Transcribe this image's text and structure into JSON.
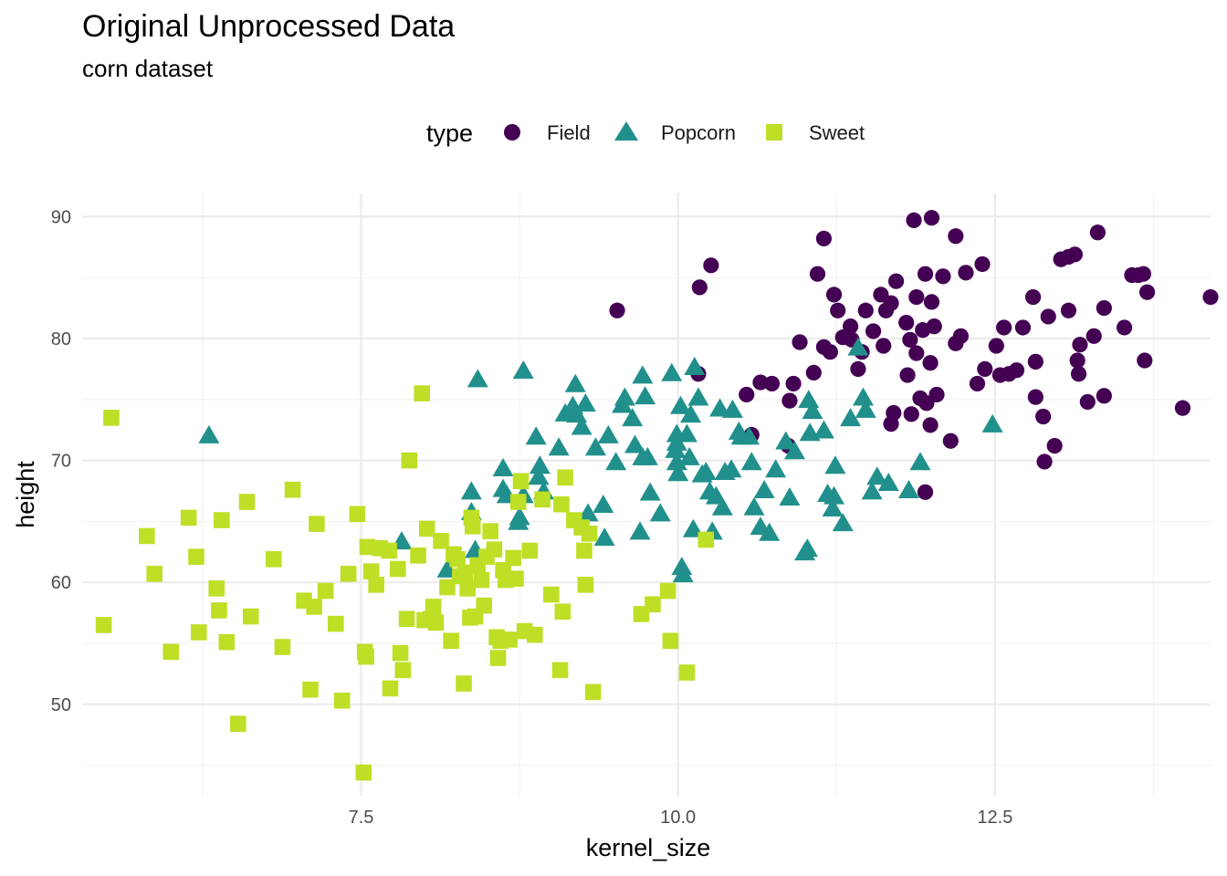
{
  "chart_data": {
    "type": "scatter",
    "title": "Original Unprocessed Data",
    "subtitle": "corn dataset",
    "xlabel": "kernel_size",
    "ylabel": "height",
    "xlim": [
      5.3,
      14.2
    ],
    "ylim": [
      42.5,
      91.9
    ],
    "x_ticks": [
      7.5,
      10.0,
      12.5
    ],
    "x_tick_labels": [
      "7.5",
      "10.0",
      "12.5"
    ],
    "y_ticks": [
      50,
      60,
      70,
      80,
      90
    ],
    "y_tick_labels": [
      "50",
      "60",
      "70",
      "80",
      "90"
    ],
    "grid": true,
    "legend": {
      "title": "type",
      "placement": "top"
    },
    "series": [
      {
        "name": "Field",
        "color": "#440154",
        "shape": "circle",
        "points": [
          [
            9.52,
            82.3
          ],
          [
            10.17,
            84.2
          ],
          [
            10.26,
            86.0
          ],
          [
            10.16,
            77.1
          ],
          [
            10.54,
            75.4
          ],
          [
            10.58,
            72.1
          ],
          [
            10.65,
            76.4
          ],
          [
            10.74,
            76.3
          ],
          [
            10.87,
            71.2
          ],
          [
            10.88,
            74.9
          ],
          [
            10.91,
            76.3
          ],
          [
            10.96,
            79.7
          ],
          [
            11.07,
            77.2
          ],
          [
            11.1,
            85.3
          ],
          [
            11.15,
            88.2
          ],
          [
            11.15,
            79.3
          ],
          [
            11.2,
            78.9
          ],
          [
            11.23,
            83.6
          ],
          [
            11.26,
            82.3
          ],
          [
            11.3,
            80.1
          ],
          [
            11.36,
            81.0
          ],
          [
            11.37,
            79.9
          ],
          [
            11.42,
            77.5
          ],
          [
            11.45,
            78.9
          ],
          [
            11.48,
            82.3
          ],
          [
            11.54,
            80.6
          ],
          [
            11.6,
            83.6
          ],
          [
            11.62,
            79.4
          ],
          [
            11.64,
            82.3
          ],
          [
            11.68,
            82.9
          ],
          [
            11.68,
            73.0
          ],
          [
            11.7,
            73.9
          ],
          [
            11.72,
            84.7
          ],
          [
            11.8,
            81.3
          ],
          [
            11.81,
            77.0
          ],
          [
            11.83,
            79.9
          ],
          [
            11.84,
            73.8
          ],
          [
            11.86,
            89.7
          ],
          [
            11.88,
            83.4
          ],
          [
            11.88,
            78.8
          ],
          [
            11.91,
            75.1
          ],
          [
            11.93,
            80.7
          ],
          [
            11.95,
            85.3
          ],
          [
            11.96,
            74.7
          ],
          [
            11.95,
            67.4
          ],
          [
            11.99,
            78.0
          ],
          [
            11.99,
            72.9
          ],
          [
            12.0,
            89.9
          ],
          [
            12.0,
            83.0
          ],
          [
            12.02,
            81.0
          ],
          [
            12.04,
            75.4
          ],
          [
            12.09,
            85.1
          ],
          [
            12.15,
            71.6
          ],
          [
            12.19,
            88.4
          ],
          [
            12.19,
            79.6
          ],
          [
            12.23,
            80.2
          ],
          [
            12.27,
            85.4
          ],
          [
            12.36,
            76.3
          ],
          [
            12.4,
            86.1
          ],
          [
            12.42,
            77.5
          ],
          [
            12.51,
            79.4
          ],
          [
            12.54,
            77.0
          ],
          [
            12.57,
            80.9
          ],
          [
            12.61,
            77.1
          ],
          [
            12.67,
            77.4
          ],
          [
            12.72,
            80.9
          ],
          [
            12.8,
            83.4
          ],
          [
            12.82,
            75.2
          ],
          [
            12.82,
            78.1
          ],
          [
            12.88,
            73.6
          ],
          [
            12.89,
            69.9
          ],
          [
            12.92,
            81.8
          ],
          [
            12.97,
            71.2
          ],
          [
            13.02,
            86.5
          ],
          [
            13.08,
            82.3
          ],
          [
            13.08,
            86.7
          ],
          [
            13.13,
            86.9
          ],
          [
            13.15,
            78.2
          ],
          [
            13.16,
            77.1
          ],
          [
            13.17,
            79.5
          ],
          [
            13.23,
            74.8
          ],
          [
            13.28,
            80.2
          ],
          [
            13.31,
            88.7
          ],
          [
            13.36,
            75.3
          ],
          [
            13.36,
            82.5
          ],
          [
            13.52,
            80.9
          ],
          [
            13.58,
            85.2
          ],
          [
            13.63,
            85.2
          ],
          [
            13.67,
            85.3
          ],
          [
            13.68,
            78.2
          ],
          [
            13.7,
            83.8
          ],
          [
            13.98,
            74.3
          ],
          [
            14.2,
            83.4
          ]
        ]
      },
      {
        "name": "Popcorn",
        "color": "#21908C",
        "shape": "triangle",
        "points": [
          [
            6.3,
            72.0
          ],
          [
            7.82,
            63.3
          ],
          [
            8.18,
            61.0
          ],
          [
            8.37,
            67.4
          ],
          [
            8.37,
            65.7
          ],
          [
            8.4,
            62.6
          ],
          [
            8.42,
            76.6
          ],
          [
            8.62,
            69.3
          ],
          [
            8.62,
            67.6
          ],
          [
            8.65,
            67.1
          ],
          [
            8.74,
            64.9
          ],
          [
            8.75,
            65.3
          ],
          [
            8.78,
            67.1
          ],
          [
            8.78,
            77.3
          ],
          [
            8.88,
            71.9
          ],
          [
            8.9,
            68.6
          ],
          [
            8.91,
            69.5
          ],
          [
            8.94,
            67.4
          ],
          [
            9.06,
            71.0
          ],
          [
            9.11,
            73.8
          ],
          [
            9.17,
            74.4
          ],
          [
            9.19,
            76.2
          ],
          [
            9.2,
            73.7
          ],
          [
            9.24,
            72.7
          ],
          [
            9.27,
            74.6
          ],
          [
            9.29,
            65.6
          ],
          [
            9.35,
            71.0
          ],
          [
            9.41,
            66.3
          ],
          [
            9.42,
            63.6
          ],
          [
            9.45,
            72.0
          ],
          [
            9.51,
            69.8
          ],
          [
            9.56,
            74.5
          ],
          [
            9.58,
            75.1
          ],
          [
            9.64,
            73.4
          ],
          [
            9.66,
            71.2
          ],
          [
            9.7,
            64.1
          ],
          [
            9.72,
            70.2
          ],
          [
            9.72,
            76.9
          ],
          [
            9.74,
            75.2
          ],
          [
            9.76,
            70.2
          ],
          [
            9.78,
            67.3
          ],
          [
            9.86,
            65.6
          ],
          [
            9.95,
            77.1
          ],
          [
            9.98,
            70.8
          ],
          [
            9.99,
            72.1
          ],
          [
            9.99,
            71.4
          ],
          [
            9.99,
            69.8
          ],
          [
            10.0,
            68.9
          ],
          [
            10.02,
            74.4
          ],
          [
            10.03,
            61.2
          ],
          [
            10.04,
            60.6
          ],
          [
            10.07,
            72.1
          ],
          [
            10.09,
            70.2
          ],
          [
            10.1,
            73.7
          ],
          [
            10.12,
            64.3
          ],
          [
            10.13,
            77.6
          ],
          [
            10.16,
            75.1
          ],
          [
            10.19,
            68.8
          ],
          [
            10.22,
            69.0
          ],
          [
            10.25,
            67.4
          ],
          [
            10.27,
            64.1
          ],
          [
            10.3,
            67.0
          ],
          [
            10.33,
            74.2
          ],
          [
            10.35,
            66.1
          ],
          [
            10.37,
            69.0
          ],
          [
            10.42,
            69.2
          ],
          [
            10.43,
            74.1
          ],
          [
            10.48,
            72.3
          ],
          [
            10.5,
            71.9
          ],
          [
            10.56,
            71.9
          ],
          [
            10.58,
            69.8
          ],
          [
            10.6,
            66.1
          ],
          [
            10.65,
            64.5
          ],
          [
            10.68,
            67.5
          ],
          [
            10.72,
            64.0
          ],
          [
            10.77,
            69.2
          ],
          [
            10.85,
            71.5
          ],
          [
            10.88,
            66.9
          ],
          [
            10.92,
            70.7
          ],
          [
            11.0,
            62.4
          ],
          [
            11.02,
            62.7
          ],
          [
            11.03,
            74.9
          ],
          [
            11.04,
            72.2
          ],
          [
            11.06,
            74.0
          ],
          [
            11.15,
            72.4
          ],
          [
            11.18,
            67.2
          ],
          [
            11.22,
            66.0
          ],
          [
            11.23,
            67.0
          ],
          [
            11.24,
            69.5
          ],
          [
            11.3,
            64.8
          ],
          [
            11.36,
            73.4
          ],
          [
            11.42,
            79.2
          ],
          [
            11.46,
            75.1
          ],
          [
            11.48,
            74.1
          ],
          [
            11.53,
            67.4
          ],
          [
            11.57,
            68.6
          ],
          [
            11.66,
            68.1
          ],
          [
            11.82,
            67.5
          ],
          [
            11.91,
            69.8
          ],
          [
            12.48,
            72.9
          ]
        ]
      },
      {
        "name": "Sweet",
        "color": "#BDDF26",
        "shape": "square",
        "points": [
          [
            5.47,
            56.5
          ],
          [
            5.53,
            73.5
          ],
          [
            5.81,
            63.8
          ],
          [
            5.87,
            60.7
          ],
          [
            6.0,
            54.3
          ],
          [
            6.14,
            65.3
          ],
          [
            6.2,
            62.1
          ],
          [
            6.22,
            55.9
          ],
          [
            6.36,
            59.5
          ],
          [
            6.38,
            57.7
          ],
          [
            6.4,
            65.1
          ],
          [
            6.44,
            55.1
          ],
          [
            6.53,
            48.4
          ],
          [
            6.6,
            66.6
          ],
          [
            6.63,
            57.2
          ],
          [
            6.81,
            61.9
          ],
          [
            6.88,
            54.7
          ],
          [
            6.96,
            67.6
          ],
          [
            7.05,
            58.5
          ],
          [
            7.1,
            51.2
          ],
          [
            7.13,
            58.0
          ],
          [
            7.15,
            64.8
          ],
          [
            7.22,
            59.3
          ],
          [
            7.3,
            56.6
          ],
          [
            7.35,
            50.3
          ],
          [
            7.4,
            60.7
          ],
          [
            7.47,
            65.6
          ],
          [
            7.52,
            44.4
          ],
          [
            7.53,
            54.3
          ],
          [
            7.54,
            53.9
          ],
          [
            7.55,
            62.9
          ],
          [
            7.58,
            60.9
          ],
          [
            7.62,
            59.8
          ],
          [
            7.65,
            62.8
          ],
          [
            7.72,
            62.6
          ],
          [
            7.73,
            51.3
          ],
          [
            7.79,
            61.1
          ],
          [
            7.81,
            54.2
          ],
          [
            7.83,
            52.8
          ],
          [
            7.86,
            57.0
          ],
          [
            7.88,
            70.0
          ],
          [
            7.95,
            62.2
          ],
          [
            7.98,
            75.5
          ],
          [
            8.0,
            56.9
          ],
          [
            8.02,
            64.4
          ],
          [
            8.05,
            57.0
          ],
          [
            8.07,
            58.0
          ],
          [
            8.09,
            56.7
          ],
          [
            8.13,
            63.4
          ],
          [
            8.18,
            59.6
          ],
          [
            8.21,
            55.2
          ],
          [
            8.23,
            62.3
          ],
          [
            8.26,
            61.9
          ],
          [
            8.28,
            60.5
          ],
          [
            8.31,
            51.7
          ],
          [
            8.32,
            60.8
          ],
          [
            8.34,
            59.5
          ],
          [
            8.36,
            57.1
          ],
          [
            8.37,
            65.3
          ],
          [
            8.38,
            64.6
          ],
          [
            8.4,
            57.2
          ],
          [
            8.42,
            61.4
          ],
          [
            8.45,
            60.2
          ],
          [
            8.47,
            58.1
          ],
          [
            8.49,
            62.1
          ],
          [
            8.52,
            64.2
          ],
          [
            8.55,
            62.7
          ],
          [
            8.57,
            55.5
          ],
          [
            8.58,
            53.8
          ],
          [
            8.6,
            55.2
          ],
          [
            8.62,
            61.0
          ],
          [
            8.64,
            60.2
          ],
          [
            8.67,
            55.3
          ],
          [
            8.7,
            62.0
          ],
          [
            8.72,
            60.3
          ],
          [
            8.74,
            66.6
          ],
          [
            8.76,
            68.3
          ],
          [
            8.79,
            56.0
          ],
          [
            8.83,
            62.6
          ],
          [
            8.87,
            55.7
          ],
          [
            8.93,
            66.8
          ],
          [
            9.0,
            59.0
          ],
          [
            9.07,
            52.8
          ],
          [
            9.08,
            66.4
          ],
          [
            9.09,
            57.6
          ],
          [
            9.11,
            68.6
          ],
          [
            9.18,
            65.1
          ],
          [
            9.24,
            64.5
          ],
          [
            9.26,
            62.6
          ],
          [
            9.27,
            59.8
          ],
          [
            9.3,
            64.0
          ],
          [
            9.33,
            51.0
          ],
          [
            9.71,
            57.4
          ],
          [
            9.8,
            58.2
          ],
          [
            9.92,
            59.3
          ],
          [
            9.94,
            55.2
          ],
          [
            10.07,
            52.6
          ],
          [
            10.22,
            63.5
          ]
        ]
      }
    ]
  }
}
